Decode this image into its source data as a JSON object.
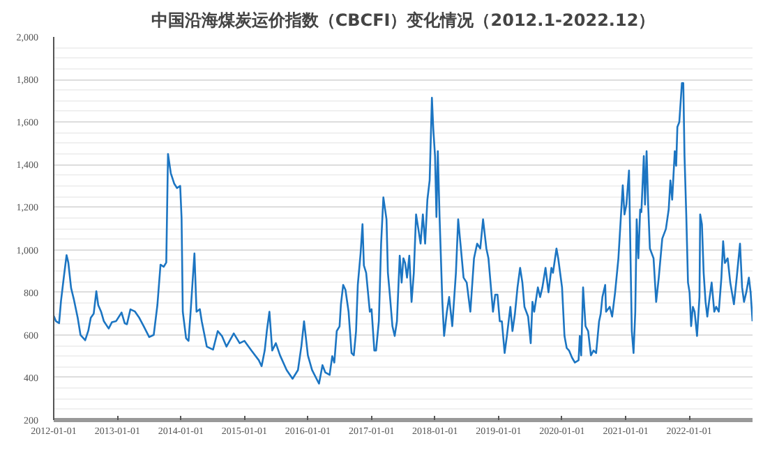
{
  "chart_data": {
    "type": "line",
    "title": "中国沿海煤炭运价指数（CBCFI）变化情况（2012.1-2022.12）",
    "x": [
      "2012-01-01",
      "2012-01-14",
      "2012-02-01",
      "2012-02-12",
      "2012-02-28",
      "2012-03-15",
      "2012-03-25",
      "2012-04-10",
      "2012-04-25",
      "2012-05-18",
      "2012-06-03",
      "2012-06-30",
      "2012-07-18",
      "2012-08-01",
      "2012-08-18",
      "2012-09-02",
      "2012-09-13",
      "2012-09-29",
      "2012-10-15",
      "2012-11-12",
      "2012-12-01",
      "2012-12-25",
      "2013-01-25",
      "2013-02-12",
      "2013-02-25",
      "2013-03-17",
      "2013-04-12",
      "2013-05-07",
      "2013-06-02",
      "2013-07-03",
      "2013-07-29",
      "2013-08-19",
      "2013-09-06",
      "2013-09-24",
      "2013-10-09",
      "2013-10-19",
      "2013-11-04",
      "2013-11-24",
      "2013-12-10",
      "2013-12-28",
      "2014-01-05",
      "2014-01-12",
      "2014-01-31",
      "2014-02-14",
      "2014-02-26",
      "2014-03-20",
      "2014-04-01",
      "2014-04-20",
      "2014-05-01",
      "2014-05-30",
      "2014-07-05",
      "2014-08-01",
      "2014-08-25",
      "2014-09-20",
      "2014-11-01",
      "2014-12-05",
      "2015-01-01",
      "2015-02-10",
      "2015-03-25",
      "2015-04-10",
      "2015-04-28",
      "2015-05-10",
      "2015-05-25",
      "2015-06-10",
      "2015-07-01",
      "2015-07-25",
      "2015-09-01",
      "2015-10-05",
      "2015-11-05",
      "2015-11-25",
      "2015-12-10",
      "2016-01-01",
      "2016-01-25",
      "2016-03-05",
      "2016-03-25",
      "2016-04-10",
      "2016-05-05",
      "2016-05-20",
      "2016-06-01",
      "2016-06-15",
      "2016-07-01",
      "2016-07-09",
      "2016-07-22",
      "2016-08-04",
      "2016-08-22",
      "2016-09-08",
      "2016-09-21",
      "2016-10-04",
      "2016-10-14",
      "2016-10-30",
      "2016-11-10",
      "2016-11-18",
      "2016-12-01",
      "2016-12-22",
      "2017-01-01",
      "2017-01-17",
      "2017-01-27",
      "2017-02-12",
      "2017-02-25",
      "2017-03-10",
      "2017-03-28",
      "2017-04-05",
      "2017-04-15",
      "2017-05-01",
      "2017-05-14",
      "2017-05-27",
      "2017-06-12",
      "2017-06-23",
      "2017-07-03",
      "2017-07-13",
      "2017-07-24",
      "2017-08-06",
      "2017-08-19",
      "2017-09-01",
      "2017-09-14",
      "2017-09-27",
      "2017-10-10",
      "2017-10-23",
      "2017-11-05",
      "2017-11-18",
      "2017-12-01",
      "2017-12-14",
      "2017-12-22",
      "2018-01-01",
      "2018-01-09",
      "2018-01-17",
      "2018-01-27",
      "2018-02-12",
      "2018-02-22",
      "2018-03-10",
      "2018-03-23",
      "2018-04-10",
      "2018-05-01",
      "2018-05-14",
      "2018-05-27",
      "2018-06-14",
      "2018-07-02",
      "2018-07-23",
      "2018-08-13",
      "2018-08-31",
      "2018-09-18",
      "2018-10-04",
      "2018-10-23",
      "2018-11-04",
      "2018-11-17",
      "2018-11-30",
      "2018-12-13",
      "2018-12-26",
      "2019-01-08",
      "2019-01-20",
      "2019-02-05",
      "2019-02-18",
      "2019-03-10",
      "2019-03-22",
      "2019-04-05",
      "2019-04-20",
      "2019-05-05",
      "2019-05-18",
      "2019-05-30",
      "2019-06-20",
      "2019-07-05",
      "2019-07-15",
      "2019-07-25",
      "2019-08-15",
      "2019-08-28",
      "2019-09-10",
      "2019-09-28",
      "2019-10-15",
      "2019-11-01",
      "2019-11-10",
      "2019-11-30",
      "2019-12-10",
      "2020-01-01",
      "2020-01-15",
      "2020-01-28",
      "2020-02-10",
      "2020-02-28",
      "2020-03-15",
      "2020-04-05",
      "2020-04-12",
      "2020-04-20",
      "2020-05-01",
      "2020-05-15",
      "2020-05-30",
      "2020-06-15",
      "2020-06-30",
      "2020-07-15",
      "2020-08-01",
      "2020-08-10",
      "2020-08-20",
      "2020-09-05",
      "2020-09-10",
      "2020-10-01",
      "2020-10-15",
      "2020-11-01",
      "2020-11-20",
      "2020-12-05",
      "2020-12-15",
      "2020-12-25",
      "2021-01-05",
      "2021-01-20",
      "2021-02-05",
      "2021-02-15",
      "2021-02-25",
      "2021-03-05",
      "2021-03-15",
      "2021-03-25",
      "2021-04-01",
      "2021-04-15",
      "2021-04-22",
      "2021-05-01",
      "2021-05-10",
      "2021-05-20",
      "2021-06-10",
      "2021-06-25",
      "2021-07-10",
      "2021-07-30",
      "2021-08-20",
      "2021-09-05",
      "2021-09-15",
      "2021-09-25",
      "2021-10-10",
      "2021-10-18",
      "2021-10-25",
      "2021-11-05",
      "2021-11-20",
      "2021-11-28",
      "2021-12-05",
      "2021-12-15",
      "2021-12-25",
      "2022-01-03",
      "2022-01-12",
      "2022-01-22",
      "2022-02-01",
      "2022-02-15",
      "2022-03-01",
      "2022-03-05",
      "2022-03-15",
      "2022-03-25",
      "2022-04-05",
      "2022-04-15",
      "2022-04-25",
      "2022-05-10",
      "2022-05-25",
      "2022-06-05",
      "2022-06-20",
      "2022-07-05",
      "2022-07-15",
      "2022-07-25",
      "2022-08-10",
      "2022-08-25",
      "2022-09-15",
      "2022-10-01",
      "2022-10-20",
      "2022-11-01",
      "2022-11-12",
      "2022-11-25",
      "2022-12-10",
      "2022-12-20",
      "2022-12-31"
    ],
    "series": [
      {
        "color": "#1c75c2",
        "values": [
          690,
          664,
          655,
          760,
          870,
          975,
          940,
          820,
          770,
          680,
          600,
          575,
          620,
          680,
          700,
          805,
          740,
          710,
          665,
          630,
          660,
          665,
          705,
          655,
          650,
          720,
          710,
          680,
          640,
          590,
          600,
          740,
          930,
          920,
          940,
          1450,
          1360,
          1310,
          1290,
          1300,
          1150,
          709,
          584,
          572,
          709,
          983,
          709,
          721,
          664,
          545,
          531,
          618,
          595,
          545,
          607,
          561,
          572,
          527,
          481,
          453,
          527,
          618,
          709,
          527,
          561,
          504,
          435,
          394,
          435,
          549,
          664,
          504,
          435,
          371,
          458,
          424,
          412,
          500,
          470,
          618,
          640,
          744,
          835,
          812,
          709,
          515,
          504,
          618,
          835,
          983,
          1120,
          926,
          892,
          709,
          721,
          527,
          527,
          664,
          1029,
          1246,
          1143,
          892,
          800,
          641,
          595,
          664,
          972,
          846,
          960,
          938,
          869,
          972,
          755,
          892,
          1166,
          1098,
          1029,
          1166,
          1029,
          1235,
          1326,
          1714,
          1566,
          1440,
          1154,
          1463,
          1154,
          755,
          595,
          709,
          778,
          641,
          892,
          1143,
          1029,
          869,
          846,
          709,
          960,
          1029,
          1006,
          1143,
          1006,
          960,
          835,
          709,
          789,
          789,
          664,
          664,
          515,
          595,
          732,
          618,
          698,
          823,
          915,
          846,
          732,
          686,
          561,
          755,
          709,
          823,
          778,
          823,
          915,
          800,
          915,
          892,
          1006,
          960,
          823,
          595,
          538,
          527,
          492,
          470,
          481,
          595,
          504,
          823,
          641,
          618,
          504,
          527,
          515,
          664,
          698,
          778,
          835,
          709,
          732,
          686,
          800,
          960,
          1166,
          1303,
          1166,
          1212,
          1372,
          618,
          515,
          709,
          1143,
          960,
          1189,
          1177,
          1440,
          1212,
          1463,
          1212,
          1006,
          960,
          755,
          869,
          1052,
          1098,
          1189,
          1326,
          1235,
          1463,
          1395,
          1577,
          1600,
          1783,
          1783,
          1440,
          1166,
          846,
          800,
          641,
          732,
          709,
          595,
          778,
          1166,
          1120,
          892,
          755,
          686,
          755,
          846,
          709,
          732,
          709,
          869,
          1040,
          938,
          960,
          846,
          744,
          869,
          1029,
          823,
          755,
          800,
          869,
          800,
          664
        ]
      }
    ],
    "xlim": [
      "2012-01-01",
      "2022-12-31"
    ],
    "xticks": [
      "2012-01-01",
      "2013-01-01",
      "2014-01-01",
      "2015-01-01",
      "2016-01-01",
      "2017-01-01",
      "2018-01-01",
      "2019-01-01",
      "2020-01-01",
      "2021-01-01",
      "2022-01-01"
    ],
    "ylim": [
      200,
      2000
    ],
    "yticks": [
      200,
      400,
      600,
      800,
      {
        "value": 1000,
        "label": "1,000"
      },
      {
        "value": 1200,
        "label": "1,200"
      },
      {
        "value": 1400,
        "label": "1,400"
      },
      {
        "value": 1600,
        "label": "1,600"
      },
      {
        "value": 1800,
        "label": "1,800"
      },
      {
        "value": 2000,
        "label": "2,000"
      }
    ],
    "grid": "y",
    "marker": "none",
    "line_style": "solid"
  }
}
